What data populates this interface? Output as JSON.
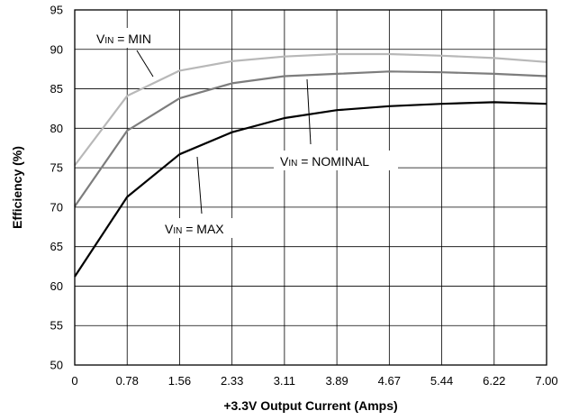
{
  "chart_data": {
    "type": "line",
    "xlabel": "+3.3V Output Current (Amps)",
    "ylabel": "Efficiency (%)",
    "x": [
      0,
      0.78,
      1.56,
      2.33,
      3.11,
      3.89,
      4.67,
      5.44,
      6.22,
      7.0
    ],
    "x_tick_labels": [
      "0",
      "0.78",
      "1.56",
      "2.33",
      "3.11",
      "3.89",
      "4.67",
      "5.44",
      "6.22",
      "7.00"
    ],
    "y_ticks": [
      50,
      55,
      60,
      65,
      70,
      75,
      80,
      85,
      90,
      95
    ],
    "y_tick_labels": [
      "50",
      "55",
      "60",
      "65",
      "70",
      "75",
      "80",
      "85",
      "90",
      "95"
    ],
    "xlim": [
      0,
      7.0
    ],
    "ylim": [
      50,
      95
    ],
    "grid": true,
    "series": [
      {
        "name": "VIN = MIN",
        "color": "#b8b8b8",
        "values": [
          75.3,
          84.1,
          87.3,
          88.5,
          89.1,
          89.4,
          89.4,
          89.2,
          88.9,
          88.4
        ]
      },
      {
        "name": "VIN = NOMINAL",
        "color": "#7d7d7d",
        "values": [
          70.1,
          79.7,
          83.8,
          85.7,
          86.6,
          86.9,
          87.2,
          87.1,
          86.9,
          86.6
        ]
      },
      {
        "name": "VIN = MAX",
        "color": "#000000",
        "values": [
          61.2,
          71.3,
          76.7,
          79.5,
          81.3,
          82.3,
          82.8,
          83.1,
          83.3,
          83.1
        ]
      }
    ],
    "annotations": [
      {
        "main": "V",
        "sub": "IN",
        "rest": " = MIN"
      },
      {
        "main": "V",
        "sub": "IN",
        "rest": " = NOMINAL"
      },
      {
        "main": "V",
        "sub": "IN",
        "rest": " = MAX"
      }
    ]
  }
}
